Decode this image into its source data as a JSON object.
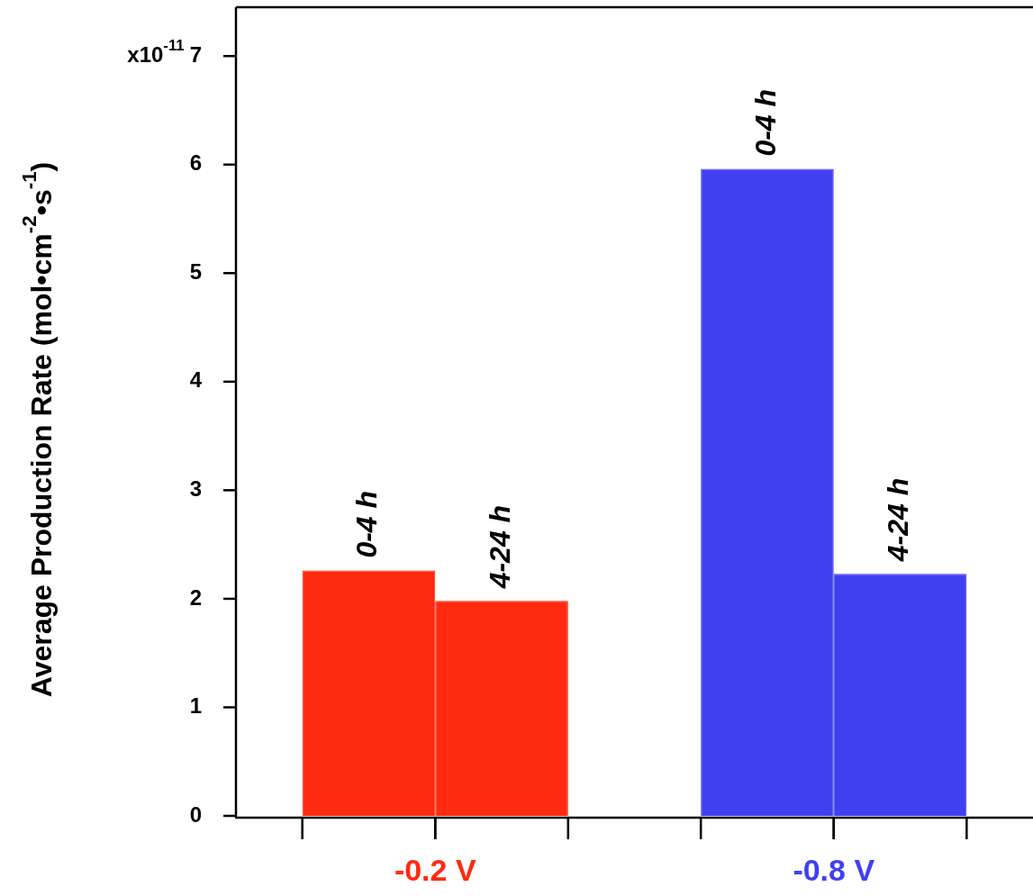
{
  "chart_data": {
    "type": "bar",
    "ylabel": "Average Production Rate (mol•cm$^{-2}$•s$^{-1}$)",
    "categories": [
      "-0.2 V",
      "-0.8 V"
    ],
    "series": [
      {
        "name": "0-4 h",
        "colors": [
          "#ff2a10",
          "#4040f0"
        ],
        "values": [
          2.26,
          5.96
        ]
      },
      {
        "name": "4-24 h",
        "colors": [
          "#ff2a10",
          "#4040f0"
        ],
        "values": [
          1.98,
          2.23
        ]
      }
    ],
    "ylim": [
      0,
      7.45
    ],
    "yticks": [
      0,
      1,
      2,
      3,
      4,
      5,
      6,
      7
    ],
    "annotations": [
      "x10$^{-11}$"
    ]
  }
}
